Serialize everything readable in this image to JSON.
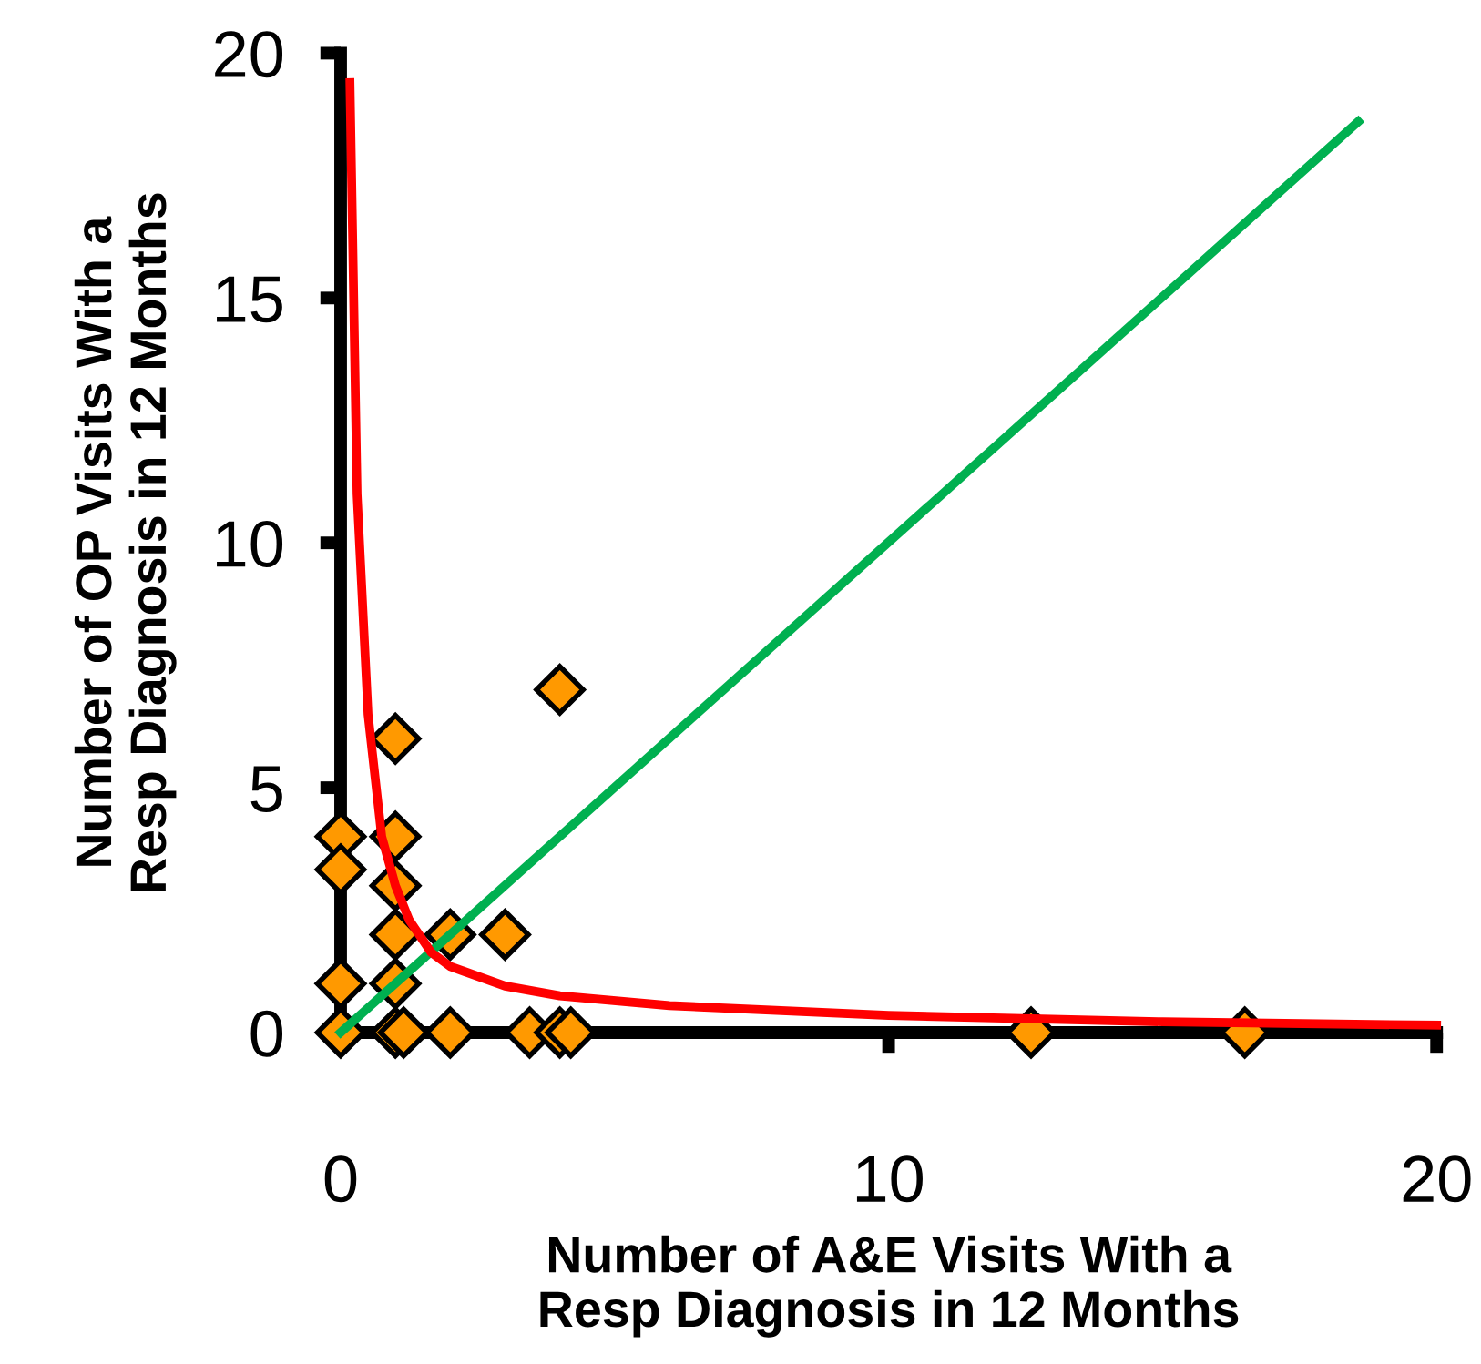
{
  "chart_data": {
    "type": "scatter",
    "xlabel": "Number of A&E Visits With a\nResp Diagnosis in 12 Months",
    "ylabel": "Number of OP Visits With a\nResp Diagnosis in 12 Months",
    "xlim": [
      0,
      20
    ],
    "ylim": [
      0,
      20
    ],
    "xticks": [
      0,
      10,
      20
    ],
    "yticks": [
      0,
      5,
      10,
      15,
      20
    ],
    "grid": false,
    "legend": false,
    "series": [
      {
        "marker": "diamond",
        "color": "#ff9900",
        "x": [
          4,
          1,
          0,
          1,
          0,
          1,
          1,
          2,
          3,
          0,
          1,
          0,
          1,
          1.15,
          2,
          3.45,
          4,
          4.2,
          12.6,
          16.5
        ],
        "values": [
          7,
          6,
          4,
          4,
          3.33,
          3,
          2,
          2,
          2,
          1,
          1,
          0,
          0,
          0,
          0,
          0,
          0,
          0,
          0,
          0
        ]
      },
      {
        "type": "line",
        "marker": "none",
        "line_style": "solid",
        "color": "#00b050",
        "x": [
          0,
          18.57
        ],
        "values": [
          0,
          18.6
        ]
      },
      {
        "type": "line",
        "marker": "none",
        "line_style": "solid",
        "color": "#ff0000",
        "x": [
          0.17,
          0.3,
          0.5,
          0.75,
          1,
          1.25,
          1.65,
          2,
          3,
          4,
          6,
          10,
          15,
          20
        ],
        "values": [
          19.4,
          11,
          6.5,
          4,
          3,
          2.3,
          1.64,
          1.35,
          0.95,
          0.75,
          0.55,
          0.35,
          0.22,
          0.15
        ]
      }
    ]
  }
}
